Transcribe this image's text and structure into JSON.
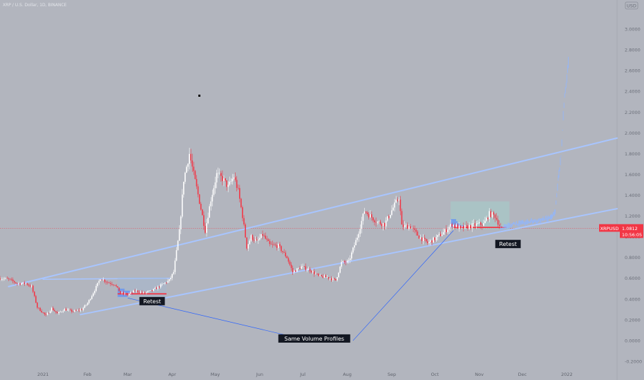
{
  "header": {
    "symbol_line": "XRP / U.S. Dollar, 1D, BINANCE"
  },
  "top_button": {
    "label": "USD"
  },
  "chart_data": {
    "type": "candlestick",
    "title": "XRP / U.S. Dollar, 1D, BINANCE",
    "ylim": [
      -0.26,
      3.16
    ],
    "y_ticks": [
      "3.0000",
      "2.8000",
      "2.6000",
      "2.4000",
      "2.2000",
      "2.0000",
      "1.8000",
      "1.6000",
      "1.4000",
      "1.2000",
      "1.0000",
      "0.8000",
      "0.6000",
      "0.4000",
      "0.2000",
      "0.0000",
      "-0.2000"
    ],
    "y_tick_values": [
      3.0,
      2.8,
      2.6,
      2.4,
      2.2,
      2.0,
      1.8,
      1.6,
      1.4,
      1.2,
      1.0,
      0.8,
      0.6,
      0.4,
      0.2,
      0.0,
      -0.2
    ],
    "x_ticks": [
      "2021",
      "Feb",
      "Mar",
      "Apr",
      "May",
      "Jun",
      "Jul",
      "Aug",
      "Sep",
      "Oct",
      "Nov",
      "Dec",
      "2022"
    ],
    "x_tick_dates": [
      "2021-01-01",
      "2021-02-01",
      "2021-03-01",
      "2021-04-01",
      "2021-05-01",
      "2021-06-01",
      "2021-07-01",
      "2021-08-01",
      "2021-09-01",
      "2021-10-01",
      "2021-11-01",
      "2021-12-01",
      "2022-01-01"
    ],
    "x_range": [
      "2020-12-02",
      "2022-02-05"
    ],
    "close_path": [
      [
        "2020-12-02",
        0.6
      ],
      [
        "2020-12-08",
        0.59
      ],
      [
        "2020-12-14",
        0.55
      ],
      [
        "2020-12-20",
        0.55
      ],
      [
        "2020-12-24",
        0.52
      ],
      [
        "2020-12-28",
        0.32
      ],
      [
        "2021-01-03",
        0.24
      ],
      [
        "2021-01-07",
        0.31
      ],
      [
        "2021-01-11",
        0.26
      ],
      [
        "2021-01-16",
        0.3
      ],
      [
        "2021-01-22",
        0.28
      ],
      [
        "2021-01-28",
        0.3
      ],
      [
        "2021-02-01",
        0.36
      ],
      [
        "2021-02-05",
        0.46
      ],
      [
        "2021-02-10",
        0.6
      ],
      [
        "2021-02-15",
        0.56
      ],
      [
        "2021-02-20",
        0.54
      ],
      [
        "2021-02-24",
        0.46
      ],
      [
        "2021-03-01",
        0.44
      ],
      [
        "2021-03-06",
        0.48
      ],
      [
        "2021-03-12",
        0.46
      ],
      [
        "2021-03-18",
        0.48
      ],
      [
        "2021-03-24",
        0.53
      ],
      [
        "2021-03-30",
        0.58
      ],
      [
        "2021-04-02",
        0.66
      ],
      [
        "2021-04-06",
        1.05
      ],
      [
        "2021-04-09",
        1.55
      ],
      [
        "2021-04-13",
        1.8
      ],
      [
        "2021-04-16",
        1.6
      ],
      [
        "2021-04-20",
        1.34
      ],
      [
        "2021-04-24",
        1.06
      ],
      [
        "2021-04-28",
        1.36
      ],
      [
        "2021-05-02",
        1.6
      ],
      [
        "2021-05-06",
        1.56
      ],
      [
        "2021-05-10",
        1.48
      ],
      [
        "2021-05-14",
        1.58
      ],
      [
        "2021-05-17",
        1.44
      ],
      [
        "2021-05-20",
        1.2
      ],
      [
        "2021-05-23",
        0.9
      ],
      [
        "2021-05-26",
        1.0
      ],
      [
        "2021-05-30",
        0.95
      ],
      [
        "2021-06-03",
        1.02
      ],
      [
        "2021-06-08",
        0.92
      ],
      [
        "2021-06-14",
        0.91
      ],
      [
        "2021-06-20",
        0.8
      ],
      [
        "2021-06-24",
        0.66
      ],
      [
        "2021-06-30",
        0.71
      ],
      [
        "2021-07-06",
        0.68
      ],
      [
        "2021-07-12",
        0.62
      ],
      [
        "2021-07-18",
        0.61
      ],
      [
        "2021-07-24",
        0.58
      ],
      [
        "2021-07-28",
        0.75
      ],
      [
        "2021-08-02",
        0.76
      ],
      [
        "2021-08-08",
        1.0
      ],
      [
        "2021-08-13",
        1.25
      ],
      [
        "2021-08-17",
        1.2
      ],
      [
        "2021-08-22",
        1.14
      ],
      [
        "2021-08-27",
        1.12
      ],
      [
        "2021-09-02",
        1.28
      ],
      [
        "2021-09-06",
        1.38
      ],
      [
        "2021-09-08",
        1.1
      ],
      [
        "2021-09-14",
        1.1
      ],
      [
        "2021-09-20",
        1.0
      ],
      [
        "2021-09-26",
        0.94
      ],
      [
        "2021-10-01",
        0.98
      ],
      [
        "2021-10-07",
        1.04
      ],
      [
        "2021-10-13",
        1.12
      ],
      [
        "2021-10-19",
        1.08
      ],
      [
        "2021-10-25",
        1.1
      ],
      [
        "2021-10-31",
        1.12
      ],
      [
        "2021-11-04",
        1.12
      ],
      [
        "2021-11-08",
        1.22
      ],
      [
        "2021-11-12",
        1.2
      ],
      [
        "2021-11-16",
        1.08
      ]
    ],
    "projection_path": [
      [
        "2021-11-16",
        1.08
      ],
      [
        "2021-11-24",
        1.12
      ],
      [
        "2021-12-02",
        1.13
      ],
      [
        "2021-12-08",
        1.15
      ],
      [
        "2021-12-14",
        1.16
      ],
      [
        "2021-12-20",
        1.18
      ],
      [
        "2021-12-24",
        1.24
      ],
      [
        "2021-12-26",
        1.55
      ],
      [
        "2021-12-28",
        1.78
      ],
      [
        "2021-12-30",
        2.28
      ],
      [
        "2022-01-01",
        2.52
      ],
      [
        "2022-01-02",
        2.66
      ]
    ],
    "channel_upper": [
      [
        "2020-12-08",
        0.52
      ],
      [
        "2022-02-05",
        1.95
      ]
    ],
    "channel_lower": [
      [
        "2021-01-27",
        0.25
      ],
      [
        "2022-02-05",
        1.27
      ]
    ],
    "small_channel_upper": [
      [
        "2021-01-01",
        0.59
      ],
      [
        "2021-03-31",
        0.6
      ]
    ],
    "current_price": {
      "value": 1.0812,
      "label": "XRPUSD",
      "price_text": "1.0812",
      "countdown": "10:56:05"
    },
    "annotations": [
      {
        "text": "Retest",
        "date": "2021-03-18",
        "value": 0.38
      },
      {
        "text": "Retest",
        "date": "2021-11-21",
        "value": 0.93
      },
      {
        "text": "Same Volume Profiles",
        "date": "2021-07-09",
        "value": 0.02
      }
    ]
  },
  "colors": {
    "background": "#b2b5be",
    "up_candle": "#ffffff",
    "down_candle": "#f23645",
    "channel": "#a8c5ff",
    "connector": "#2962ff",
    "projection": "#90b6ff",
    "price_line": "#f23645",
    "axis_text": "#6a6e78"
  }
}
